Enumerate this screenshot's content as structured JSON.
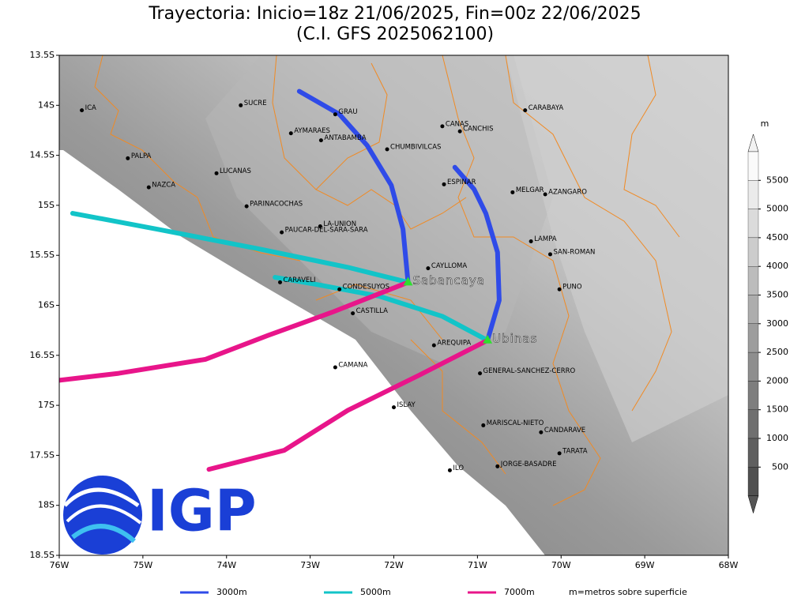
{
  "header": {
    "title": "Trayectoria: Inicio=18z 21/06/2025, Fin=00z 22/06/2025",
    "subtitle": "(C.I. GFS 2025062100)"
  },
  "map": {
    "lonlim": [
      -76,
      -68
    ],
    "latlim": [
      -18.5,
      -13.5
    ],
    "lonticks": [
      {
        "value": -76,
        "label": "76W"
      },
      {
        "value": -75,
        "label": "75W"
      },
      {
        "value": -74,
        "label": "74W"
      },
      {
        "value": -73,
        "label": "73W"
      },
      {
        "value": -72,
        "label": "72W"
      },
      {
        "value": -71,
        "label": "71W"
      },
      {
        "value": -70,
        "label": "70W"
      },
      {
        "value": -69,
        "label": "69W"
      },
      {
        "value": -68,
        "label": "68W"
      }
    ],
    "latticks": [
      {
        "value": -13.5,
        "label": "13.5S"
      },
      {
        "value": -14,
        "label": "14S"
      },
      {
        "value": -14.5,
        "label": "14.5S"
      },
      {
        "value": -15,
        "label": "15S"
      },
      {
        "value": -15.5,
        "label": "15.5S"
      },
      {
        "value": -16,
        "label": "16S"
      },
      {
        "value": -16.5,
        "label": "16.5S"
      },
      {
        "value": -17,
        "label": "17S"
      },
      {
        "value": -17.5,
        "label": "17.5S"
      },
      {
        "value": -18,
        "label": "18S"
      },
      {
        "value": -18.5,
        "label": "18.5S"
      }
    ],
    "places": [
      {
        "name": "ICA",
        "lon": -75.73,
        "lat": -14.05
      },
      {
        "name": "SUCRE",
        "lon": -73.83,
        "lat": -14.0
      },
      {
        "name": "GRAU",
        "lon": -72.7,
        "lat": -14.09
      },
      {
        "name": "AYMARAES",
        "lon": -73.23,
        "lat": -14.28
      },
      {
        "name": "ANTABAMBA",
        "lon": -72.87,
        "lat": -14.35
      },
      {
        "name": "CHUMBIVILCAS",
        "lon": -72.08,
        "lat": -14.44
      },
      {
        "name": "CANAS",
        "lon": -71.42,
        "lat": -14.21
      },
      {
        "name": "CANCHIS",
        "lon": -71.21,
        "lat": -14.26
      },
      {
        "name": "CARABAYA",
        "lon": -70.43,
        "lat": -14.05
      },
      {
        "name": "PALPA",
        "lon": -75.18,
        "lat": -14.53
      },
      {
        "name": "LUCANAS",
        "lon": -74.12,
        "lat": -14.68
      },
      {
        "name": "NAZCA",
        "lon": -74.93,
        "lat": -14.82
      },
      {
        "name": "ESPINAR",
        "lon": -71.4,
        "lat": -14.79
      },
      {
        "name": "MELGAR",
        "lon": -70.58,
        "lat": -14.87
      },
      {
        "name": "AZANGARO",
        "lon": -70.19,
        "lat": -14.89
      },
      {
        "name": "PARINACOCHAS",
        "lon": -73.76,
        "lat": -15.01
      },
      {
        "name": "LA-UNION",
        "lon": -72.88,
        "lat": -15.21
      },
      {
        "name": "PAUCAR-DEL-SARA-SARA",
        "lon": -73.34,
        "lat": -15.27
      },
      {
        "name": "LAMPA",
        "lon": -70.36,
        "lat": -15.36
      },
      {
        "name": "SAN-ROMAN",
        "lon": -70.13,
        "lat": -15.49
      },
      {
        "name": "CAYLLOMA",
        "lon": -71.59,
        "lat": -15.63
      },
      {
        "name": "CARAVELI",
        "lon": -73.36,
        "lat": -15.77
      },
      {
        "name": "CONDESUYOS",
        "lon": -72.65,
        "lat": -15.84
      },
      {
        "name": "PUNO",
        "lon": -70.02,
        "lat": -15.84
      },
      {
        "name": "CASTILLA",
        "lon": -72.49,
        "lat": -16.08
      },
      {
        "name": "AREQUIPA",
        "lon": -71.52,
        "lat": -16.4
      },
      {
        "name": "CAMANA",
        "lon": -72.7,
        "lat": -16.62
      },
      {
        "name": "GENERAL-SANCHEZ-CERRO",
        "lon": -70.97,
        "lat": -16.68
      },
      {
        "name": "ISLAY",
        "lon": -72.0,
        "lat": -17.02
      },
      {
        "name": "MARISCAL-NIETO",
        "lon": -70.93,
        "lat": -17.2
      },
      {
        "name": "CANDARAVE",
        "lon": -70.24,
        "lat": -17.27
      },
      {
        "name": "TARATA",
        "lon": -70.02,
        "lat": -17.48
      },
      {
        "name": "ILO",
        "lon": -71.33,
        "lat": -17.65
      },
      {
        "name": "JORGE-BASADRE",
        "lon": -70.76,
        "lat": -17.61
      }
    ],
    "volcanoes": [
      {
        "name": "Sabancaya",
        "lon": -71.83,
        "lat": -15.77
      },
      {
        "name": "Ubinas",
        "lon": -70.88,
        "lat": -16.35
      }
    ],
    "trajectories": [
      {
        "name": "3000m",
        "color": "#2f4be8",
        "paths": [
          {
            "lon": [
              -71.83,
              -71.89,
              -72.03,
              -72.32,
              -72.65,
              -73.13
            ],
            "lat": [
              -15.77,
              -15.24,
              -14.8,
              -14.4,
              -14.09,
              -13.86
            ]
          },
          {
            "lon": [
              -70.88,
              -70.74,
              -70.76,
              -70.9,
              -71.04,
              -71.27
            ],
            "lat": [
              -16.35,
              -15.95,
              -15.47,
              -15.08,
              -14.84,
              -14.62
            ]
          }
        ]
      },
      {
        "name": "5000m",
        "color": "#12c4c8",
        "paths": [
          {
            "lon": [
              -71.83,
              -72.55,
              -73.59,
              -74.82,
              -75.84
            ],
            "lat": [
              -15.77,
              -15.62,
              -15.44,
              -15.24,
              -15.08
            ]
          },
          {
            "lon": [
              -70.88,
              -71.42,
              -72.17,
              -72.93,
              -73.42
            ],
            "lat": [
              -16.35,
              -16.11,
              -15.91,
              -15.79,
              -15.72
            ]
          }
        ]
      },
      {
        "name": "7000m",
        "color": "#e8158a",
        "paths": [
          {
            "lon": [
              -71.83,
              -72.74,
              -73.5,
              -74.25,
              -75.29,
              -76
            ],
            "lat": [
              -15.77,
              -16.07,
              -16.3,
              -16.54,
              -16.68,
              -16.75
            ]
          },
          {
            "lon": [
              -70.88,
              -71.7,
              -72.55,
              -73.31,
              -74.21
            ],
            "lat": [
              -16.35,
              -16.7,
              -17.05,
              -17.45,
              -17.64
            ]
          }
        ]
      }
    ]
  },
  "colorbar": {
    "unit": "m",
    "levels": [
      500,
      1000,
      1500,
      2000,
      2500,
      3000,
      3500,
      4000,
      4500,
      5000,
      5500
    ]
  },
  "legend": {
    "note": "m=metros sobre superficie"
  },
  "logo": {
    "text": "IGP"
  }
}
